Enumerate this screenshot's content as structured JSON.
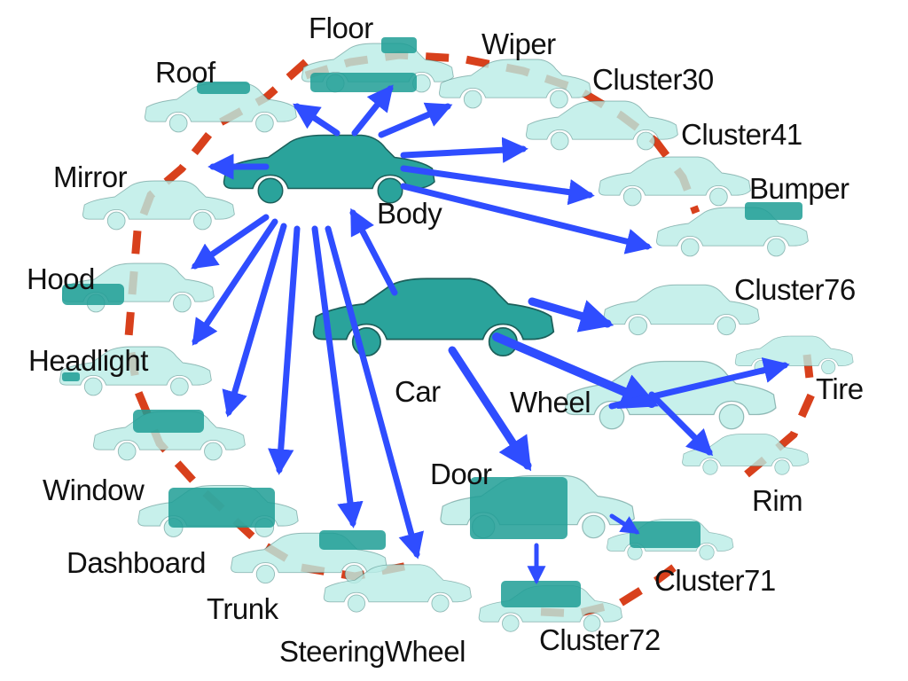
{
  "colors": {
    "arrow": "#2f4dff",
    "dash": "#d8401c",
    "car_solid": "#2aa39b",
    "car_ghost": "#b9ece6",
    "outline": "#2f6f6b",
    "background": "#ffffff"
  },
  "labels": {
    "floor": "Floor",
    "wiper": "Wiper",
    "roof": "Roof",
    "cluster30": "Cluster30",
    "cluster41": "Cluster41",
    "mirror": "Mirror",
    "bumper": "Bumper",
    "body": "Body",
    "hood": "Hood",
    "cluster76": "Cluster76",
    "headlight": "Headlight",
    "car": "Car",
    "tire": "Tire",
    "wheel": "Wheel",
    "window": "Window",
    "door": "Door",
    "rim": "Rim",
    "dashboard": "Dashboard",
    "cluster71": "Cluster71",
    "trunk": "Trunk",
    "cluster72": "Cluster72",
    "steeringwheel": "SteeringWheel"
  }
}
